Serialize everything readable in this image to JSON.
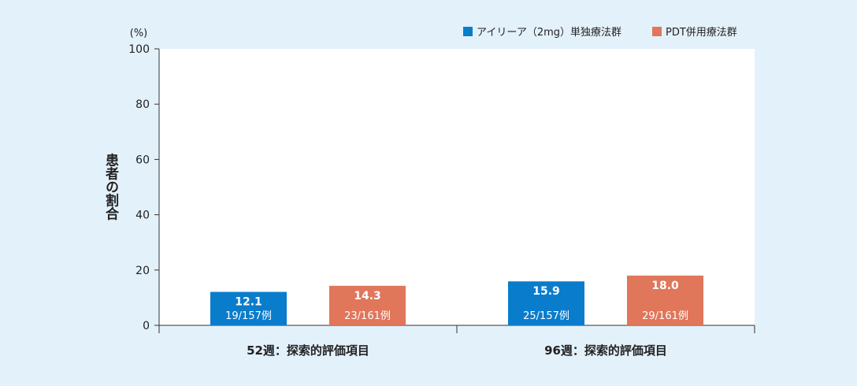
{
  "chart_data": {
    "type": "bar",
    "unit_label": "(%)",
    "ylabel": "患者の割合",
    "ylim": [
      0,
      100
    ],
    "yticks": [
      0,
      20,
      40,
      60,
      80,
      100
    ],
    "categories": [
      "52週：探索的評価項目",
      "96週：探索的評価項目"
    ],
    "series": [
      {
        "name": "アイリーア（2mg）単独療法群",
        "color": "#0a7ccc",
        "values": [
          12.1,
          15.9
        ],
        "value_labels": [
          "12.1",
          "15.9"
        ],
        "n_labels": [
          "19/157例",
          "25/157例"
        ]
      },
      {
        "name": "PDT併用療法群",
        "color": "#e0765a",
        "values": [
          14.3,
          18.0
        ],
        "value_labels": [
          "14.3",
          "18.0"
        ],
        "n_labels": [
          "23/161例",
          "29/161例"
        ]
      }
    ],
    "legend_position": "top-right",
    "grid": false
  },
  "colors": {
    "background": "#e3f1fb",
    "plot_area": "#ffffff"
  }
}
